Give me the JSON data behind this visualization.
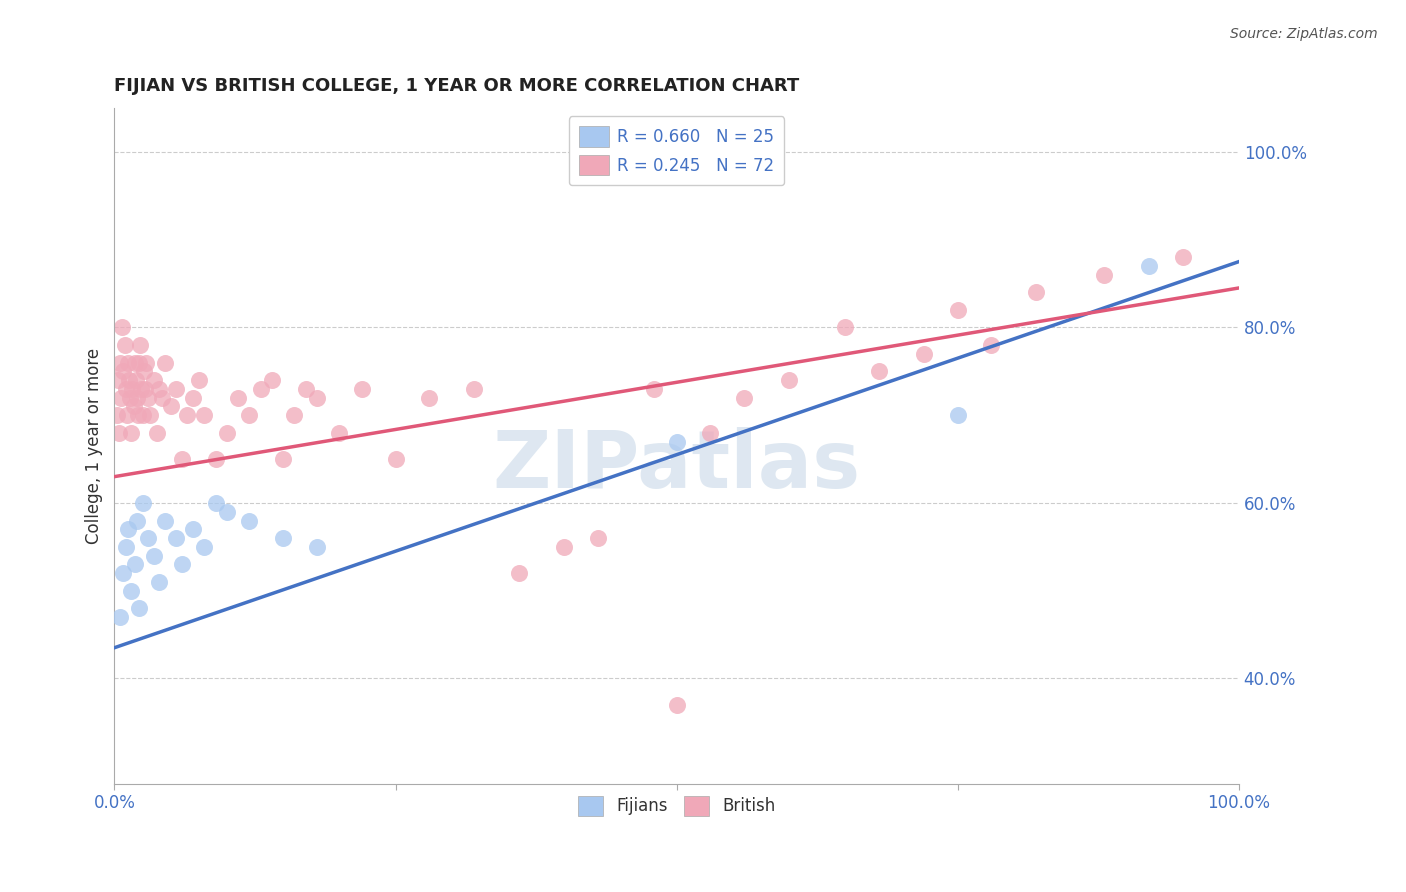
{
  "title": "FIJIAN VS BRITISH COLLEGE, 1 YEAR OR MORE CORRELATION CHART",
  "source": "Source: ZipAtlas.com",
  "ylabel": "College, 1 year or more",
  "ytick_labels": [
    "40.0%",
    "60.0%",
    "80.0%",
    "100.0%"
  ],
  "ytick_values": [
    0.4,
    0.6,
    0.8,
    1.0
  ],
  "xlim": [
    0.0,
    1.0
  ],
  "ylim": [
    0.28,
    1.05
  ],
  "watermark_text": "ZIPatlas",
  "legend_fijian_R": "R = 0.660",
  "legend_fijian_N": "N = 25",
  "legend_british_R": "R = 0.245",
  "legend_british_N": "N = 72",
  "fijian_color": "#A8C8F0",
  "british_color": "#F0A8B8",
  "fijian_line_color": "#4472C4",
  "british_line_color": "#E05878",
  "fijian_x": [
    0.005,
    0.008,
    0.01,
    0.012,
    0.015,
    0.018,
    0.02,
    0.022,
    0.025,
    0.03,
    0.035,
    0.04,
    0.045,
    0.055,
    0.06,
    0.07,
    0.08,
    0.09,
    0.1,
    0.12,
    0.15,
    0.18,
    0.5,
    0.75,
    0.92
  ],
  "fijian_y": [
    0.47,
    0.52,
    0.55,
    0.57,
    0.5,
    0.53,
    0.58,
    0.48,
    0.6,
    0.56,
    0.54,
    0.51,
    0.58,
    0.56,
    0.53,
    0.57,
    0.55,
    0.6,
    0.59,
    0.58,
    0.56,
    0.55,
    0.67,
    0.7,
    0.87
  ],
  "british_x": [
    0.002,
    0.003,
    0.004,
    0.005,
    0.006,
    0.007,
    0.008,
    0.009,
    0.01,
    0.011,
    0.012,
    0.013,
    0.014,
    0.015,
    0.016,
    0.017,
    0.018,
    0.019,
    0.02,
    0.021,
    0.022,
    0.023,
    0.024,
    0.025,
    0.026,
    0.027,
    0.028,
    0.03,
    0.032,
    0.035,
    0.038,
    0.04,
    0.042,
    0.045,
    0.05,
    0.055,
    0.06,
    0.065,
    0.07,
    0.075,
    0.08,
    0.09,
    0.1,
    0.11,
    0.12,
    0.13,
    0.14,
    0.15,
    0.16,
    0.17,
    0.18,
    0.2,
    0.22,
    0.25,
    0.28,
    0.32,
    0.36,
    0.4,
    0.43,
    0.48,
    0.5,
    0.53,
    0.56,
    0.6,
    0.65,
    0.68,
    0.72,
    0.75,
    0.78,
    0.82,
    0.88,
    0.95
  ],
  "british_y": [
    0.7,
    0.74,
    0.68,
    0.76,
    0.72,
    0.8,
    0.75,
    0.78,
    0.73,
    0.7,
    0.76,
    0.74,
    0.72,
    0.68,
    0.73,
    0.71,
    0.76,
    0.74,
    0.72,
    0.7,
    0.76,
    0.78,
    0.73,
    0.7,
    0.75,
    0.73,
    0.76,
    0.72,
    0.7,
    0.74,
    0.68,
    0.73,
    0.72,
    0.76,
    0.71,
    0.73,
    0.65,
    0.7,
    0.72,
    0.74,
    0.7,
    0.65,
    0.68,
    0.72,
    0.7,
    0.73,
    0.74,
    0.65,
    0.7,
    0.73,
    0.72,
    0.68,
    0.73,
    0.65,
    0.72,
    0.73,
    0.52,
    0.55,
    0.56,
    0.73,
    0.37,
    0.68,
    0.72,
    0.74,
    0.8,
    0.75,
    0.77,
    0.82,
    0.78,
    0.84,
    0.86,
    0.88
  ],
  "fijian_trend_x": [
    0.0,
    1.0
  ],
  "fijian_trend_y": [
    0.435,
    0.875
  ],
  "british_trend_x": [
    0.0,
    1.0
  ],
  "british_trend_y": [
    0.63,
    0.845
  ]
}
